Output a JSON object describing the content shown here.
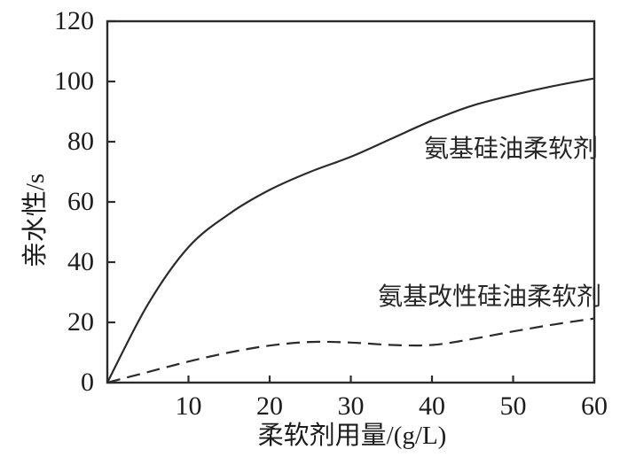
{
  "chart_data": {
    "type": "line",
    "title": "",
    "xlabel": "柔软剂用量/(g/L)",
    "ylabel": "亲水性/s",
    "xlim": [
      0,
      60
    ],
    "ylim": [
      0,
      120
    ],
    "x_ticks": [
      10,
      20,
      30,
      40,
      50,
      60
    ],
    "y_ticks": [
      0,
      20,
      40,
      60,
      80,
      100,
      120
    ],
    "grid": false,
    "legend_position": "inline-annotations",
    "line_color": "#2b2b2b",
    "series": [
      {
        "name": "氨基硅油柔软剂",
        "style": "solid",
        "x": [
          0,
          5,
          10,
          15,
          20,
          25,
          30,
          35,
          40,
          45,
          50,
          55,
          60
        ],
        "y": [
          0,
          26,
          45,
          56,
          64,
          70,
          75,
          81,
          87,
          92,
          95.5,
          98.5,
          101
        ]
      },
      {
        "name": "氨基改性硅油柔软剂",
        "style": "dashed",
        "x": [
          0,
          5,
          10,
          15,
          20,
          25,
          30,
          35,
          40,
          45,
          50,
          55,
          60
        ],
        "y": [
          0,
          3.5,
          7,
          10,
          12.3,
          13.5,
          13.3,
          12.5,
          12.5,
          14.5,
          17,
          19.3,
          21.3
        ]
      }
    ]
  }
}
